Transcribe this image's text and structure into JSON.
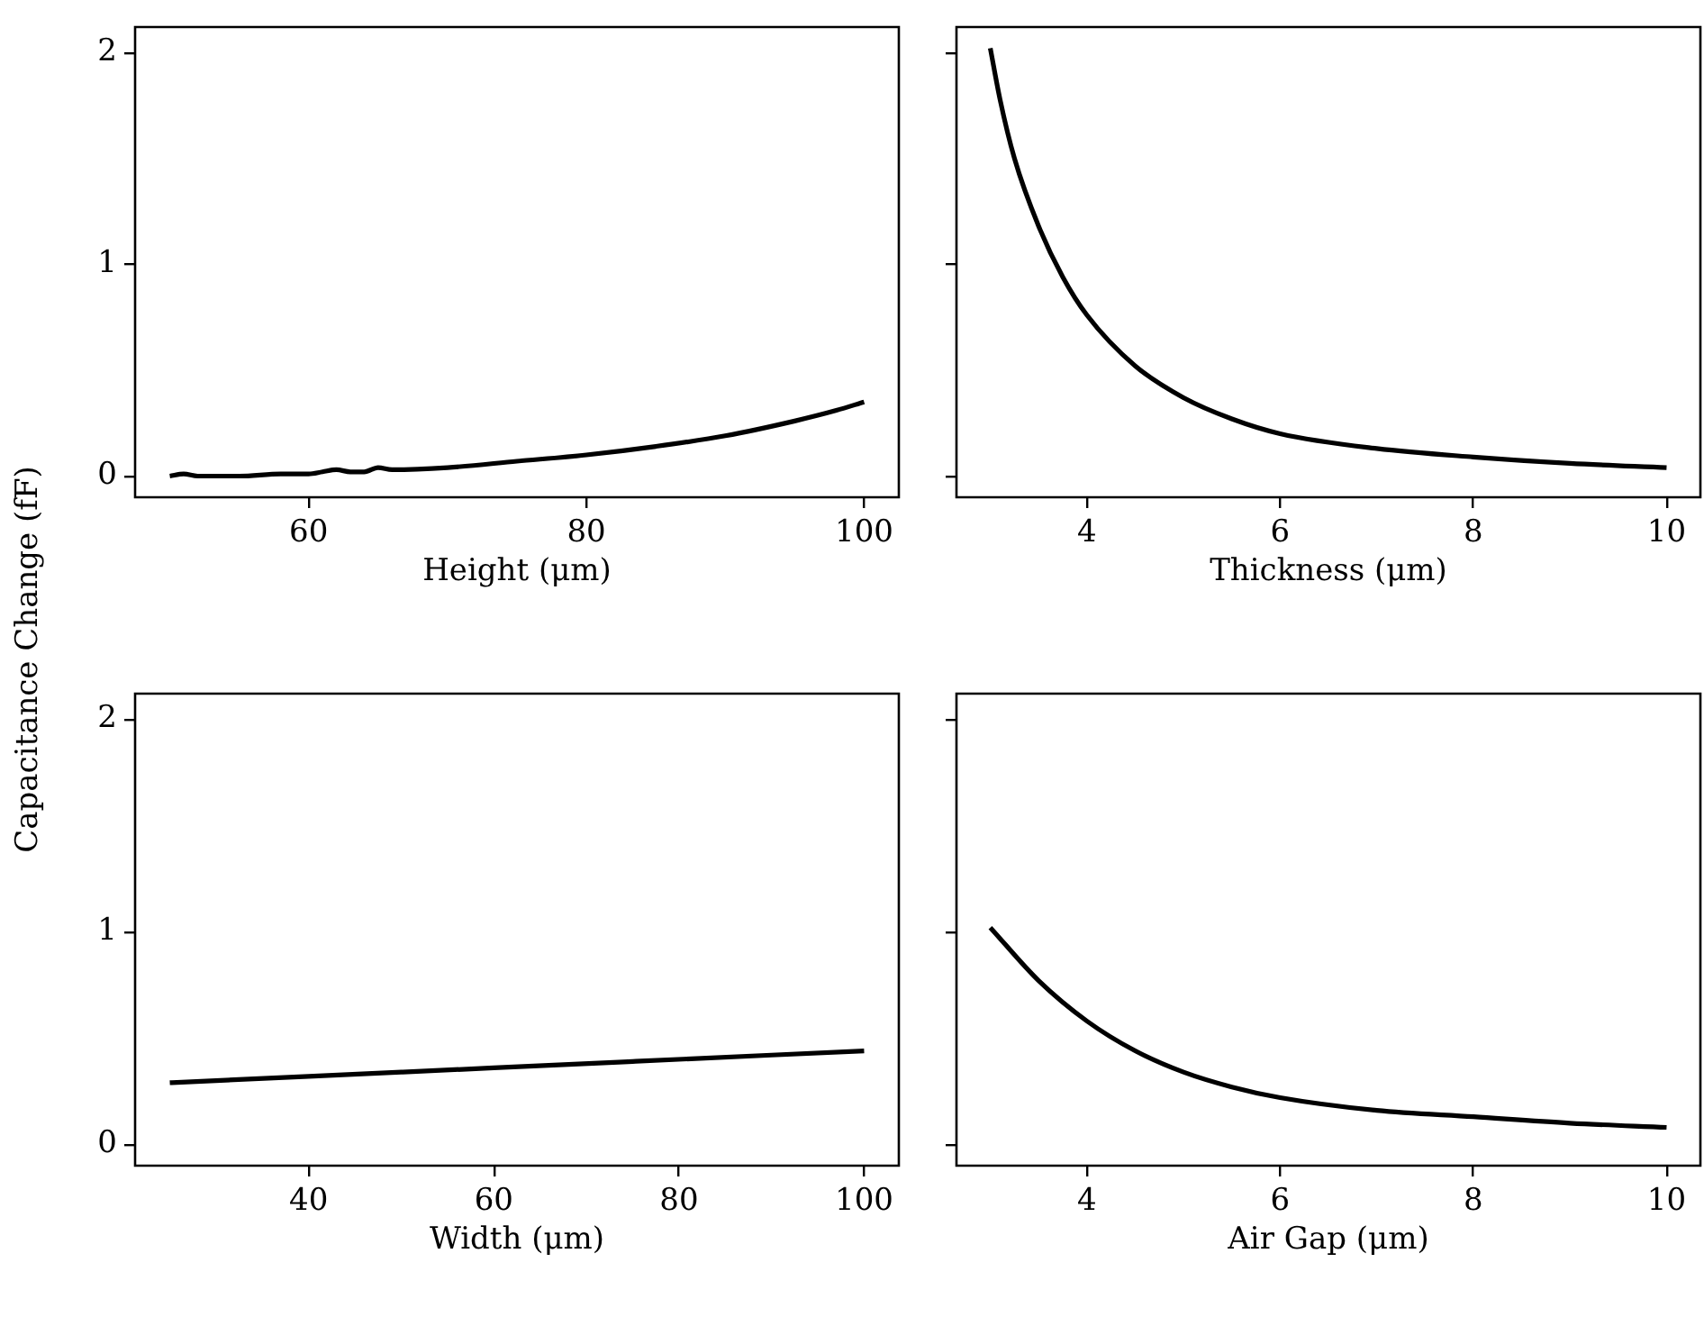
{
  "chart_data": [
    {
      "type": "line",
      "ylabel": "Capacitance Change (fF)",
      "xlabel": "Height (μm)",
      "x": [
        50,
        51,
        52,
        55,
        58,
        60,
        61,
        62,
        63,
        64,
        65,
        66,
        70,
        75,
        80,
        85,
        90,
        95,
        98,
        100
      ],
      "series": [
        {
          "color": "#000000",
          "values": [
            0.0,
            0.01,
            0.0,
            0.0,
            0.01,
            0.01,
            0.02,
            0.03,
            0.02,
            0.02,
            0.04,
            0.03,
            0.04,
            0.07,
            0.1,
            0.14,
            0.19,
            0.26,
            0.31,
            0.35
          ]
        }
      ],
      "xlim": [
        47.5,
        102.5
      ],
      "xticks": [
        60,
        80,
        100
      ],
      "ylim": [
        -0.1,
        2.12
      ],
      "yticks": [
        0,
        1,
        2
      ],
      "grid": false,
      "legend": false,
      "marker": "none",
      "line_style": "solid"
    },
    {
      "type": "line",
      "xlabel": "Thickness (μm)",
      "x": [
        3,
        3.1,
        3.25,
        3.5,
        3.75,
        4,
        4.5,
        5,
        5.5,
        6,
        7,
        8,
        9,
        10
      ],
      "series": [
        {
          "color": "#000000",
          "values": [
            2.02,
            1.78,
            1.5,
            1.18,
            0.94,
            0.76,
            0.52,
            0.37,
            0.27,
            0.2,
            0.13,
            0.09,
            0.06,
            0.04
          ]
        }
      ],
      "xlim": [
        2.65,
        10.35
      ],
      "xticks": [
        4,
        6,
        8,
        10
      ],
      "ylim": [
        -0.1,
        2.12
      ],
      "yticks": [
        0,
        1,
        2
      ],
      "tick_labels": "x",
      "grid": false,
      "legend": false,
      "marker": "none",
      "line_style": "solid"
    },
    {
      "type": "line",
      "xlabel": "Width (μm)",
      "x": [
        25,
        40,
        50,
        60,
        75,
        90,
        100
      ],
      "series": [
        {
          "color": "#000000",
          "values": [
            0.29,
            0.32,
            0.34,
            0.36,
            0.39,
            0.42,
            0.44
          ]
        }
      ],
      "xlim": [
        21.25,
        103.75
      ],
      "xticks": [
        40,
        60,
        80,
        100
      ],
      "ylim": [
        -0.1,
        2.12
      ],
      "yticks": [
        0,
        1,
        2
      ],
      "grid": false,
      "legend": false,
      "marker": "none",
      "line_style": "solid"
    },
    {
      "type": "line",
      "xlabel": "Air Gap (μm)",
      "x": [
        3,
        3.5,
        4,
        4.5,
        5,
        5.5,
        6,
        7,
        8,
        9,
        10
      ],
      "series": [
        {
          "color": "#000000",
          "values": [
            1.02,
            0.77,
            0.58,
            0.44,
            0.34,
            0.27,
            0.22,
            0.16,
            0.13,
            0.1,
            0.08
          ]
        }
      ],
      "xlim": [
        2.65,
        10.35
      ],
      "xticks": [
        4,
        6,
        8,
        10
      ],
      "ylim": [
        -0.1,
        2.12
      ],
      "yticks": [
        0,
        1,
        2
      ],
      "tick_labels": "x",
      "grid": false,
      "legend": false,
      "marker": "none",
      "line_style": "solid"
    }
  ]
}
